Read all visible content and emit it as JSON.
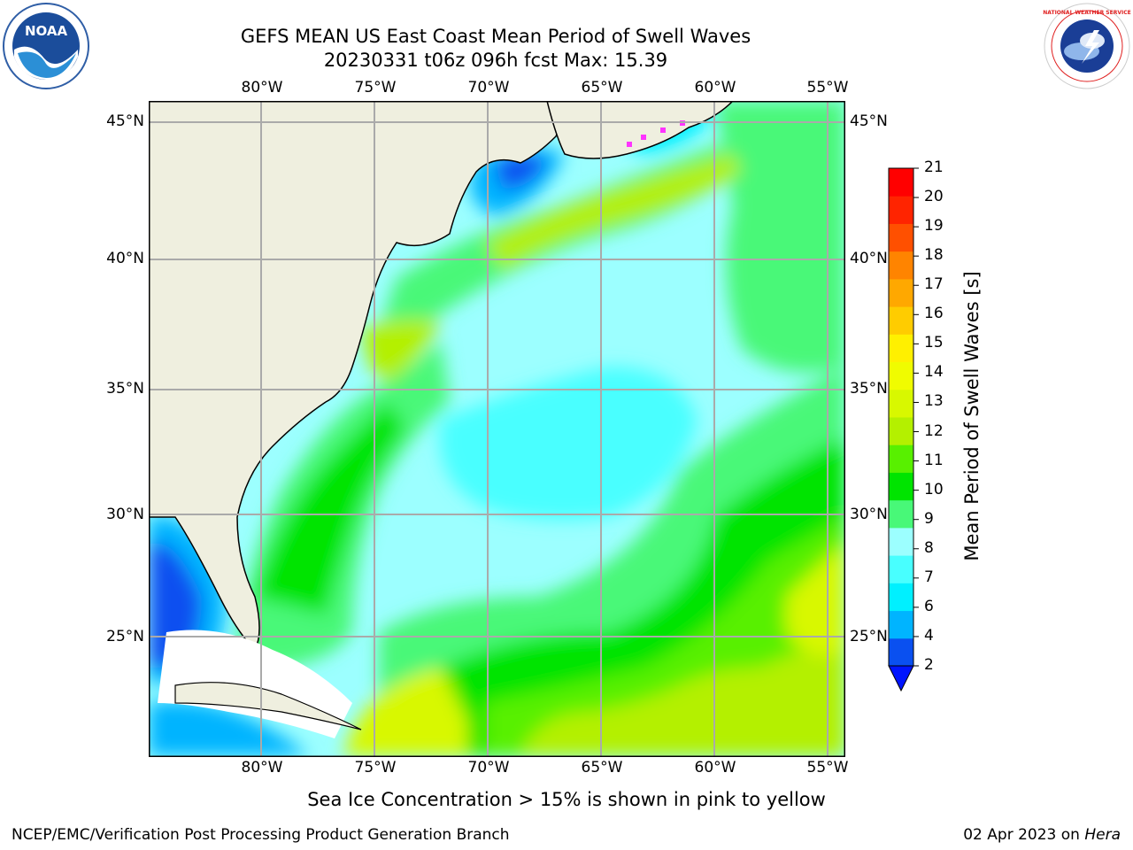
{
  "header": {
    "title_line1": "GEFS MEAN US East Coast Mean Period of Swell Waves",
    "title_line2": "20230331 t06z 096h fcst   Max: 15.39"
  },
  "logos": {
    "left": "NOAA",
    "right": "NATIONAL WEATHER SERVICE"
  },
  "map": {
    "lon_labels": [
      "80°W",
      "75°W",
      "70°W",
      "65°W",
      "60°W",
      "55°W"
    ],
    "lat_labels": [
      "45°N",
      "40°N",
      "35°N",
      "30°N",
      "25°N"
    ]
  },
  "colorbar": {
    "label": "Mean Period of Swell Waves [s]",
    "ticks": [
      "2",
      "4",
      "6",
      "7",
      "8",
      "9",
      "10",
      "11",
      "12",
      "13",
      "14",
      "15",
      "16",
      "17",
      "18",
      "19",
      "20",
      "21"
    ],
    "colors": [
      "#0a50f0",
      "#00b4ff",
      "#00f0ff",
      "#48ffff",
      "#9cffff",
      "#48f878",
      "#00e400",
      "#58f000",
      "#b4f000",
      "#d8f800",
      "#f0fc00",
      "#fff000",
      "#ffcc00",
      "#ffa800",
      "#ff8400",
      "#ff5000",
      "#ff2400",
      "#ff0000"
    ],
    "under_color": "#0014ff"
  },
  "footer": {
    "caption": "Sea Ice Concentration > 15% is shown in pink to yellow",
    "credit": "NCEP/EMC/Verification Post Processing Product Generation Branch",
    "date_prefix": "02 Apr 2023 on",
    "date_host": "Hera"
  }
}
